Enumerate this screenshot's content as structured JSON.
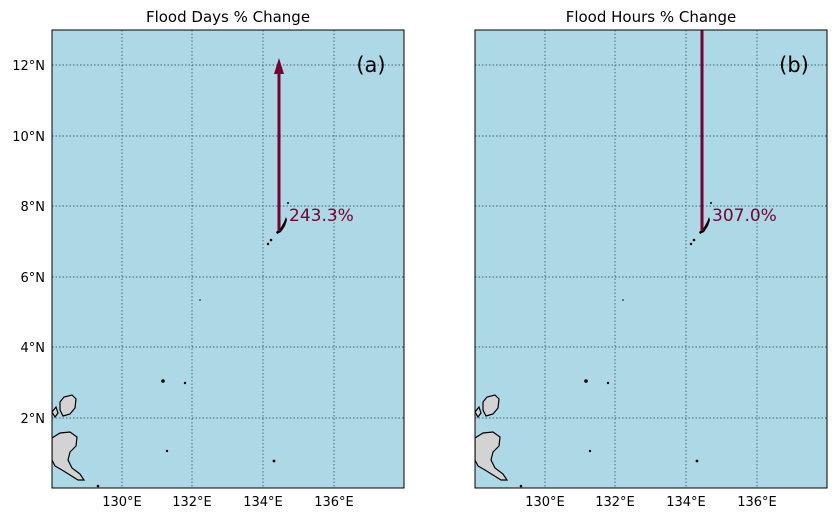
{
  "colors": {
    "ocean": "#add8e6",
    "arrow": "#7a0030",
    "land": "#d3d3d3"
  },
  "panels": [
    {
      "title": "Flood Days % Change",
      "label": "(a)",
      "percent_text": "243.3%",
      "arrow_tip": "head"
    },
    {
      "title": "Flood Hours % Change",
      "label": "(b)",
      "percent_text": "307.0%",
      "arrow_tip": "clipped"
    }
  ],
  "map": {
    "lon_range": [
      128,
      138
    ],
    "lat_range": [
      0,
      13
    ],
    "x_ticks": [
      "130°E",
      "132°E",
      "134°E",
      "136°E"
    ],
    "y_ticks": [
      "12°N",
      "10°N",
      "8°N",
      "6°N",
      "4°N",
      "2°N"
    ]
  }
}
